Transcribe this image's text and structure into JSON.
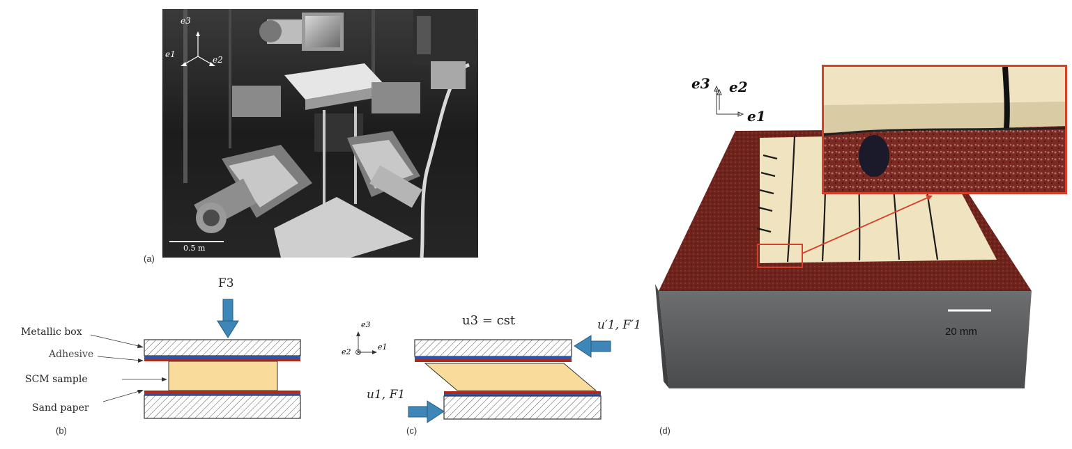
{
  "panel_a": {
    "label": "(a)",
    "axes": {
      "e3": "e3",
      "e1": "e1",
      "e2": "e2"
    },
    "scale_bar": "0.5 m"
  },
  "panel_b": {
    "label": "(b)",
    "force": "F3",
    "layer_labels": [
      "Metallic box",
      "Adhesive",
      "SCM sample",
      "Sand paper"
    ]
  },
  "panel_c": {
    "label": "(c)",
    "axes": {
      "e3": "e3",
      "e2": "e2",
      "e1": "e1"
    },
    "top_condition": "u3 = cst",
    "top_force": "u′1, F′1",
    "bottom_force": "u1, F1"
  },
  "panel_d": {
    "label": "(d)",
    "axes": {
      "e3": "e3",
      "e2": "e2",
      "e1": "e1"
    },
    "scale_bar": "20 mm"
  },
  "colors": {
    "arrow_blue": "#3d86b8",
    "sample_yellow": "#f9dc9c",
    "adhesive_red": "#b02a1a",
    "highlight_red": "#d4402a",
    "sandpaper": "#7a2a22",
    "steel": "#5a5b5d"
  }
}
